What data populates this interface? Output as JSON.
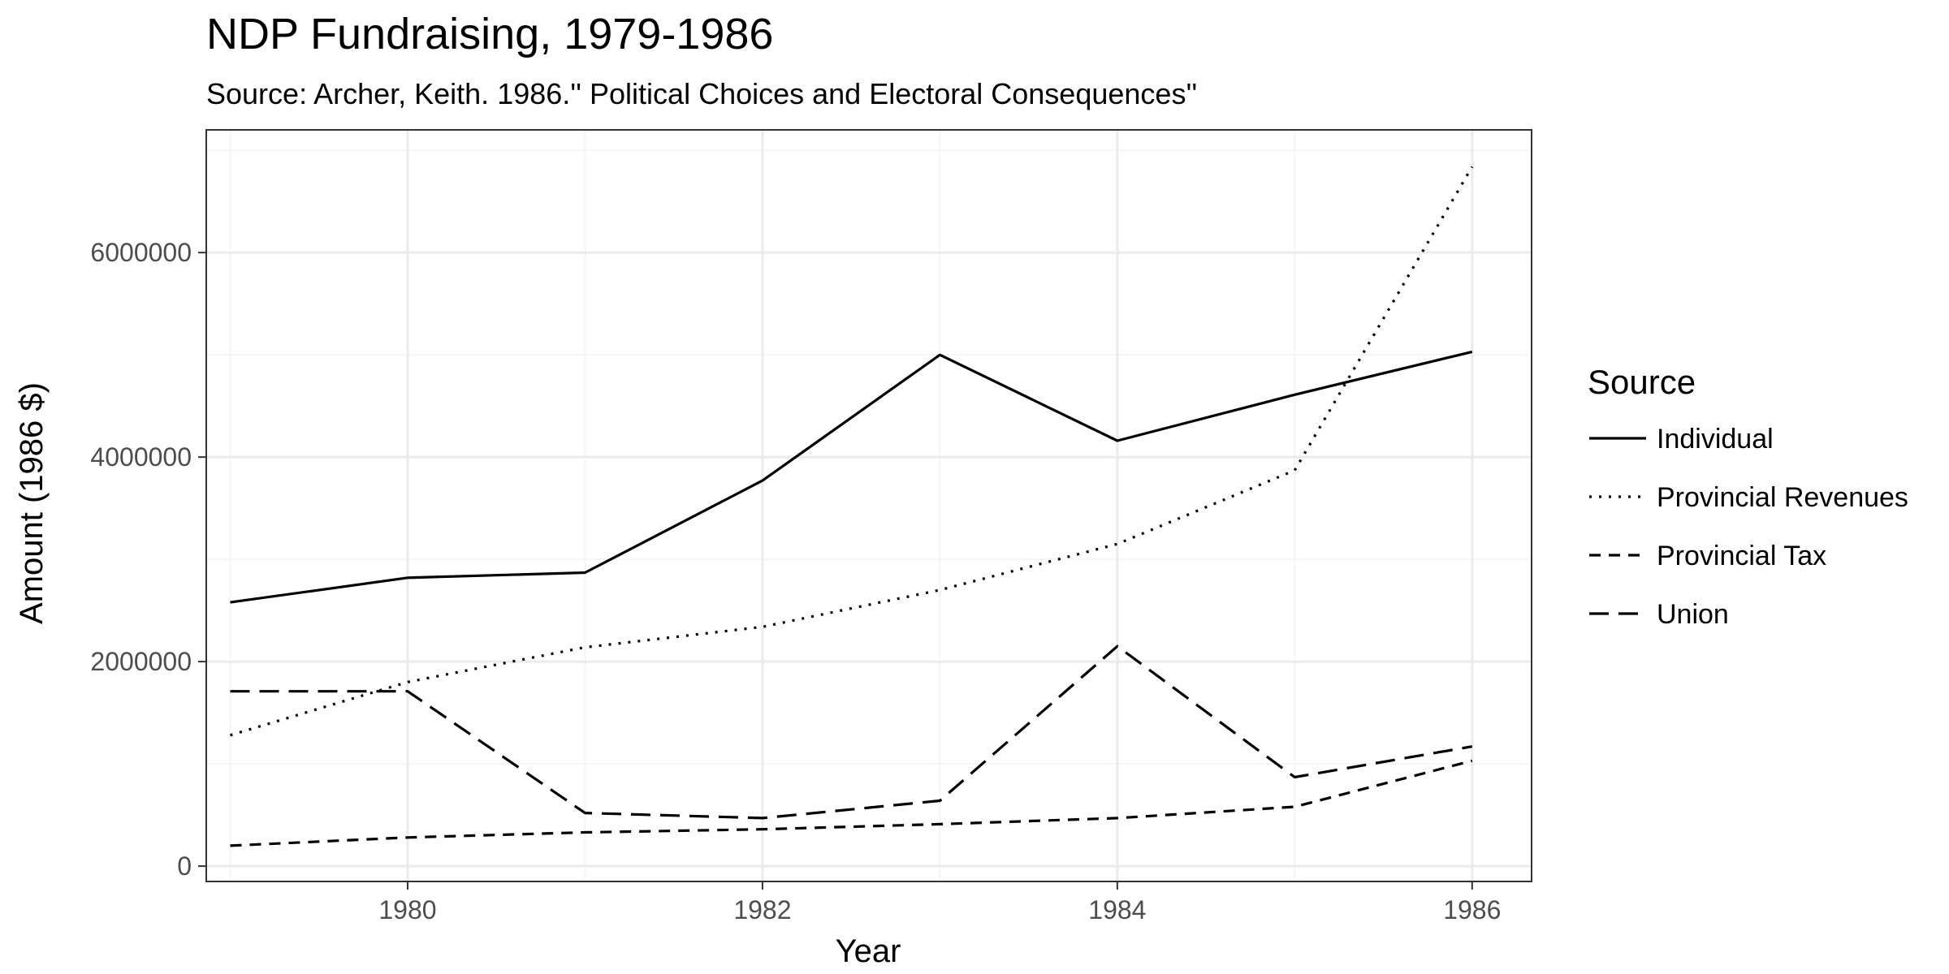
{
  "chart_data": {
    "type": "line",
    "title": "NDP Fundraising, 1979-1986",
    "subtitle": "Source: Archer, Keith. 1986.'' Political Choices and Electoral Consequences''",
    "xlabel": "Year",
    "ylabel": "Amount (1986 $)",
    "xlim": [
      1978.865,
      1986.335
    ],
    "ylim": [
      -150000,
      7200000
    ],
    "x_ticks": [
      1980,
      1982,
      1984,
      1986
    ],
    "x_tick_labels": [
      "1980",
      "1982",
      "1984",
      "1986"
    ],
    "y_ticks": [
      0,
      2000000,
      4000000,
      6000000
    ],
    "y_tick_labels": [
      "0",
      "2000000",
      "4000000",
      "6000000"
    ],
    "grid": true,
    "legend": {
      "title": "Source",
      "position": "right"
    },
    "x": [
      1979,
      1980,
      1981,
      1982,
      1983,
      1984,
      1985,
      1986
    ],
    "series": [
      {
        "name": "Individual",
        "dash": "solid",
        "values": [
          2580000,
          2820000,
          2870000,
          3770000,
          5000000,
          4160000,
          4610000,
          5030000
        ]
      },
      {
        "name": "Provincial Revenues",
        "dash": "dotted",
        "values": [
          1280000,
          1800000,
          2140000,
          2340000,
          2700000,
          3150000,
          3870000,
          6840000
        ]
      },
      {
        "name": "Provincial Tax",
        "dash": "dashed",
        "values": [
          200000,
          280000,
          330000,
          360000,
          410000,
          470000,
          580000,
          1030000
        ]
      },
      {
        "name": "Union",
        "dash": "longdash",
        "values": [
          1710000,
          1710000,
          520000,
          470000,
          640000,
          2150000,
          870000,
          1170000
        ]
      }
    ],
    "colors": {
      "line": "#000000",
      "panel_border": "#333333",
      "grid_major": "#ebebeb",
      "grid_minor": "#f2f2f2",
      "tick_label": "#4d4d4d"
    }
  }
}
